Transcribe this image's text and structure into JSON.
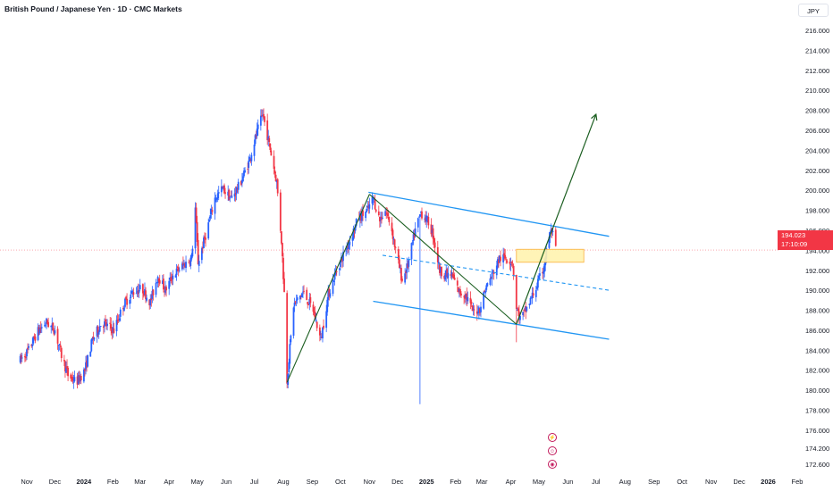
{
  "header": {
    "title": "British Pound / Japanese Yen · 1D · CMC Markets",
    "currency": "JPY"
  },
  "price_badge": {
    "price": "194.023",
    "countdown": "17:10:09"
  },
  "colors": {
    "up": "#2962ff",
    "down": "#f23645",
    "channel": "#2196f3",
    "arrow": "#1b5e20",
    "zone_fill": "#fff3b0",
    "zone_border": "#f9a825",
    "last_price_line": "#f23645"
  },
  "events": [
    {
      "icon_name": "lightning-event-icon"
    },
    {
      "icon_name": "smiley-event-icon"
    },
    {
      "icon_name": "dividend-event-icon"
    }
  ],
  "chart_data": {
    "type": "candlestick",
    "title": "British Pound / Japanese Yen · 1D · CMC Markets",
    "ylim": [
      171.6,
      217.4
    ],
    "y_ticks": [
      "172.600",
      "174.200",
      "176.000",
      "178.000",
      "180.000",
      "182.000",
      "184.000",
      "186.000",
      "188.000",
      "190.000",
      "192.000",
      "194.000",
      "196.000",
      "198.000",
      "200.000",
      "202.000",
      "204.000",
      "206.000",
      "208.000",
      "210.000",
      "212.000",
      "214.000",
      "216.000"
    ],
    "x_ticks": [
      {
        "label": "Nov",
        "bold": false
      },
      {
        "label": "Dec",
        "bold": false
      },
      {
        "label": "2024",
        "bold": true
      },
      {
        "label": "Feb",
        "bold": false
      },
      {
        "label": "Mar",
        "bold": false
      },
      {
        "label": "Apr",
        "bold": false
      },
      {
        "label": "May",
        "bold": false
      },
      {
        "label": "Jun",
        "bold": false
      },
      {
        "label": "Jul",
        "bold": false
      },
      {
        "label": "Aug",
        "bold": false
      },
      {
        "label": "Sep",
        "bold": false
      },
      {
        "label": "Oct",
        "bold": false
      },
      {
        "label": "Nov",
        "bold": false
      },
      {
        "label": "Dec",
        "bold": false
      },
      {
        "label": "2025",
        "bold": true
      },
      {
        "label": "Feb",
        "bold": false
      },
      {
        "label": "Mar",
        "bold": false
      },
      {
        "label": "Apr",
        "bold": false
      },
      {
        "label": "May",
        "bold": false
      },
      {
        "label": "Jun",
        "bold": false
      },
      {
        "label": "Jul",
        "bold": false
      },
      {
        "label": "Aug",
        "bold": false
      },
      {
        "label": "Sep",
        "bold": false
      },
      {
        "label": "Oct",
        "bold": false
      },
      {
        "label": "Nov",
        "bold": false
      },
      {
        "label": "Dec",
        "bold": false
      },
      {
        "label": "2026",
        "bold": true
      },
      {
        "label": "Feb",
        "bold": false
      }
    ],
    "price_path": [
      [
        "2023-10-25",
        183.0
      ],
      [
        "2023-11-03",
        184.0
      ],
      [
        "2023-11-12",
        185.8
      ],
      [
        "2023-11-22",
        186.8
      ],
      [
        "2023-12-01",
        186.0
      ],
      [
        "2023-12-08",
        183.5
      ],
      [
        "2023-12-15",
        181.5
      ],
      [
        "2023-12-24",
        180.8
      ],
      [
        "2024-01-02",
        182.0
      ],
      [
        "2024-01-10",
        185.0
      ],
      [
        "2024-01-20",
        186.8
      ],
      [
        "2024-02-02",
        186.0
      ],
      [
        "2024-02-12",
        188.5
      ],
      [
        "2024-02-22",
        189.8
      ],
      [
        "2024-03-03",
        190.2
      ],
      [
        "2024-03-12",
        188.8
      ],
      [
        "2024-03-20",
        191.5
      ],
      [
        "2024-03-28",
        190.0
      ],
      [
        "2024-04-05",
        191.5
      ],
      [
        "2024-04-15",
        192.4
      ],
      [
        "2024-04-25",
        193.2
      ],
      [
        "2024-04-29",
        198.2
      ],
      [
        "2024-05-02",
        192.8
      ],
      [
        "2024-05-10",
        195.5
      ],
      [
        "2024-05-20",
        199.2
      ],
      [
        "2024-05-28",
        200.2
      ],
      [
        "2024-06-06",
        199.2
      ],
      [
        "2024-06-15",
        200.5
      ],
      [
        "2024-06-25",
        202.8
      ],
      [
        "2024-07-03",
        205.5
      ],
      [
        "2024-07-10",
        207.6
      ],
      [
        "2024-07-15",
        205.5
      ],
      [
        "2024-07-20",
        203.2
      ],
      [
        "2024-07-25",
        200.8
      ],
      [
        "2024-07-30",
        195.0
      ],
      [
        "2024-08-03",
        188.0
      ],
      [
        "2024-08-05",
        181.0
      ],
      [
        "2024-08-12",
        188.5
      ],
      [
        "2024-08-22",
        189.8
      ],
      [
        "2024-09-02",
        188.0
      ],
      [
        "2024-09-10",
        185.0
      ],
      [
        "2024-09-18",
        189.5
      ],
      [
        "2024-09-26",
        191.8
      ],
      [
        "2024-10-04",
        193.5
      ],
      [
        "2024-10-12",
        195.2
      ],
      [
        "2024-10-20",
        197.2
      ],
      [
        "2024-10-30",
        198.0
      ],
      [
        "2024-11-05",
        199.2
      ],
      [
        "2024-11-12",
        197.0
      ],
      [
        "2024-11-18",
        198.0
      ],
      [
        "2024-11-24",
        196.5
      ],
      [
        "2024-11-30",
        193.5
      ],
      [
        "2024-12-06",
        191.0
      ],
      [
        "2024-12-12",
        192.5
      ],
      [
        "2024-12-20",
        196.0
      ],
      [
        "2024-12-26",
        197.8
      ],
      [
        "2025-01-03",
        196.8
      ],
      [
        "2025-01-08",
        195.5
      ],
      [
        "2025-01-15",
        192.0
      ],
      [
        "2025-01-22",
        191.5
      ],
      [
        "2025-01-28",
        191.5
      ],
      [
        "2025-02-05",
        189.8
      ],
      [
        "2025-02-12",
        189.5
      ],
      [
        "2025-02-20",
        187.8
      ],
      [
        "2025-02-27",
        188.2
      ],
      [
        "2025-03-05",
        190.2
      ],
      [
        "2025-03-12",
        191.5
      ],
      [
        "2025-03-20",
        193.2
      ],
      [
        "2025-03-28",
        193.2
      ],
      [
        "2025-04-03",
        192.8
      ],
      [
        "2025-04-07",
        188.2
      ],
      [
        "2025-04-11",
        187.2
      ],
      [
        "2025-04-16",
        187.8
      ],
      [
        "2025-04-22",
        189.0
      ],
      [
        "2025-04-29",
        190.5
      ],
      [
        "2025-05-06",
        192.2
      ],
      [
        "2025-05-12",
        195.5
      ],
      [
        "2025-05-15",
        196.0
      ],
      [
        "2025-05-19",
        194.0
      ]
    ],
    "wick_extremes": [
      [
        "2024-08-05",
        180.2
      ],
      [
        "2024-12-25",
        178.6
      ],
      [
        "2025-04-07",
        184.8
      ],
      [
        "2024-07-11",
        208.2
      ]
    ],
    "drawings": {
      "channel_upper": [
        [
          "2024-10-31",
          199.8
        ],
        [
          "2025-07-15",
          195.4
        ]
      ],
      "channel_middle": [
        [
          "2024-11-15",
          193.5
        ],
        [
          "2025-07-15",
          190.0
        ]
      ],
      "channel_lower": [
        [
          "2024-11-05",
          188.9
        ],
        [
          "2025-07-15",
          185.1
        ]
      ],
      "flag_pole": [
        [
          "2024-08-05",
          180.8
        ],
        [
          "2024-11-01",
          199.6
        ]
      ],
      "down_leg": [
        [
          "2024-11-01",
          199.6
        ],
        [
          "2025-04-07",
          186.6
        ]
      ],
      "breakout_arrow": [
        [
          "2025-04-07",
          186.6
        ],
        [
          "2025-07-01",
          207.6
        ]
      ],
      "zone": {
        "from": "2025-04-07",
        "to": "2025-06-18",
        "top": 194.1,
        "bottom": 192.8
      },
      "last_price": 194.023
    }
  }
}
